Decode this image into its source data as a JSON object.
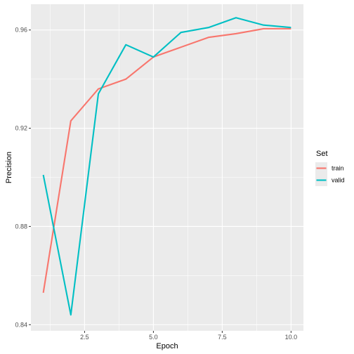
{
  "chart_data": {
    "type": "line",
    "title": "",
    "xlabel": "Epoch",
    "ylabel": "Precision",
    "xlim": [
      0.55,
      10.45
    ],
    "ylim": [
      0.8375,
      0.9705
    ],
    "x_ticks": [
      2.5,
      5.0,
      7.5,
      10.0
    ],
    "x_tick_labels": [
      "2.5",
      "5.0",
      "7.5",
      "10.0"
    ],
    "x_minor_ticks": [
      1.25,
      3.75,
      6.25,
      8.75
    ],
    "y_ticks": [
      0.84,
      0.88,
      0.92,
      0.96
    ],
    "y_tick_labels": [
      "0.84",
      "0.88",
      "0.92",
      "0.96"
    ],
    "y_minor_ticks": [
      0.86,
      0.9,
      0.94
    ],
    "grid": true,
    "legend_placement": "right",
    "legend_title": "Set",
    "x": [
      1,
      2,
      3,
      4,
      5,
      6,
      7,
      8,
      9,
      10
    ],
    "series": [
      {
        "name": "train",
        "color": "#F8766D",
        "values": [
          0.853,
          0.923,
          0.936,
          0.94,
          0.949,
          0.953,
          0.957,
          0.9585,
          0.9605,
          0.9605
        ]
      },
      {
        "name": "valid",
        "color": "#00BFC4",
        "values": [
          0.901,
          0.844,
          0.934,
          0.954,
          0.949,
          0.959,
          0.961,
          0.965,
          0.962,
          0.961
        ]
      }
    ],
    "panel_background": "#EBEBEB",
    "grid_color": "#FFFFFF"
  }
}
